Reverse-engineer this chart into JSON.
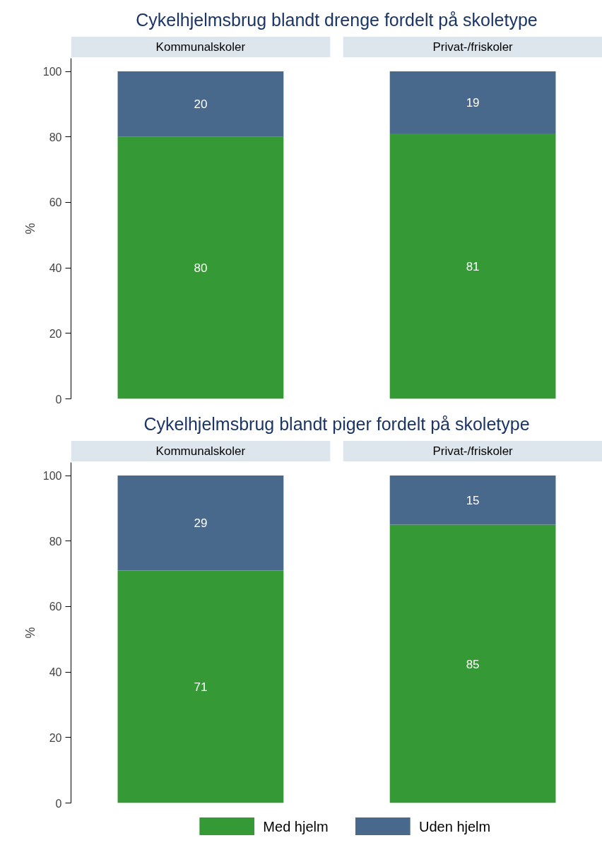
{
  "chart_data": [
    {
      "type": "bar",
      "title": "Cykelhjelmsbrug blandt drenge fordelt på skoletype",
      "categories": [
        "Kommunalskoler",
        "Privat-/friskoler"
      ],
      "stacked": true,
      "ylabel": "%",
      "ylim": [
        0,
        104
      ],
      "yticks": [
        0,
        20,
        40,
        60,
        80,
        100
      ],
      "data_labels": true,
      "grid": false,
      "legend": false,
      "series": [
        {
          "color": "#359a35",
          "values": [
            80,
            81
          ]
        },
        {
          "color": "#48698c",
          "values": [
            20,
            19
          ]
        }
      ]
    },
    {
      "type": "bar",
      "title": "Cykelhjelmsbrug blandt piger fordelt på skoletype",
      "categories": [
        "Kommunalskoler",
        "Privat-/friskoler"
      ],
      "stacked": true,
      "ylabel": "%",
      "ylim": [
        0,
        104
      ],
      "yticks": [
        0,
        20,
        40,
        60,
        80,
        100
      ],
      "data_labels": true,
      "grid": false,
      "legend": "bottom",
      "series": [
        {
          "name": "Med hjelm",
          "color": "#359a35",
          "values": [
            71,
            85
          ]
        },
        {
          "name": "Uden hjelm",
          "color": "#48698c",
          "values": [
            29,
            15
          ]
        }
      ]
    }
  ]
}
